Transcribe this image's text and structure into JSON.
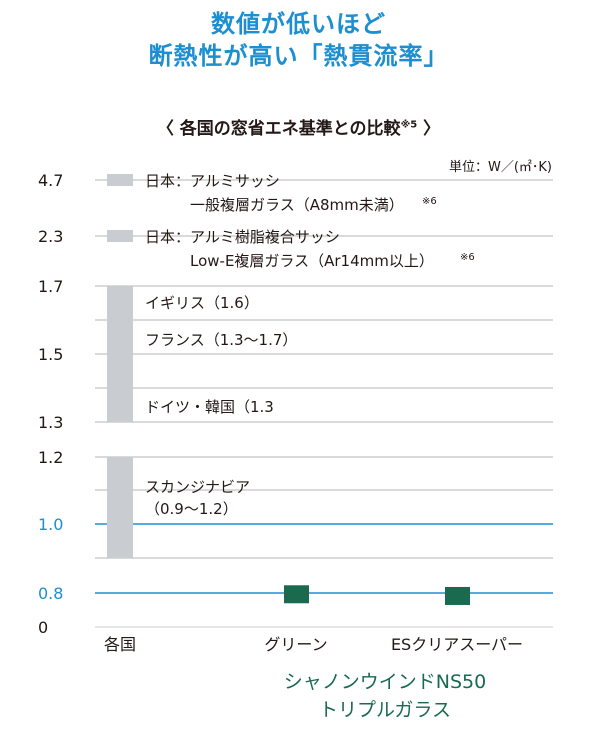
{
  "headline": {
    "line1": "数値が低いほど",
    "line2": "断熱性が高い「熱貫流率」"
  },
  "subtitle": {
    "text": "〈 各国の窓省エネ基準との比較",
    "note": "※5",
    "close": " 〉"
  },
  "brand": {
    "line1": "シャノンウインドNS50",
    "line2": "トリプルガラス"
  },
  "colors": {
    "headline": "#1d8fd0",
    "highlight_line": "#1d8fd0",
    "grid": "#9d9d9d",
    "range_bar": "#c9cdd1",
    "product_bar": "#1a6a4f",
    "brand": "#1a6a4f"
  },
  "chart_data": {
    "type": "bar",
    "unit_label": "単位：W／(㎡･K)",
    "y_ticks": [
      {
        "value": 0,
        "label": "0",
        "highlight": false
      },
      {
        "value": 0.8,
        "label": "0.8",
        "highlight": true
      },
      {
        "value": 0.9,
        "label": "",
        "highlight": false
      },
      {
        "value": 1.0,
        "label": "1.0",
        "highlight": true
      },
      {
        "value": 1.1,
        "label": "",
        "highlight": false
      },
      {
        "value": 1.2,
        "label": "1.2",
        "highlight": false
      },
      {
        "value": 1.3,
        "label": "1.3",
        "highlight": false
      },
      {
        "value": 1.4,
        "label": "",
        "highlight": false
      },
      {
        "value": 1.5,
        "label": "1.5",
        "highlight": false
      },
      {
        "value": 1.6,
        "label": "",
        "highlight": false
      },
      {
        "value": 1.7,
        "label": "1.7",
        "highlight": false
      },
      {
        "value": 2.3,
        "label": "2.3",
        "highlight": false
      },
      {
        "value": 4.7,
        "label": "4.7",
        "highlight": false
      }
    ],
    "categories": [
      "各国",
      "グリーン",
      "ESクリアスーパー"
    ],
    "country_ranges": [
      {
        "name": "日本",
        "low": 4.7,
        "high": 4.7,
        "label": [
          "日本：アルミサッシ",
          "一般複層ガラス（A8mm未満）"
        ],
        "note": "※6"
      },
      {
        "name": "日本",
        "low": 2.3,
        "high": 2.3,
        "label": [
          "日本：アルミ樹脂複合サッシ",
          "Low-E複層ガラス（Ar14mm以上）"
        ],
        "note": "※6"
      },
      {
        "name": "イギリス",
        "low": 1.6,
        "high": 1.6,
        "label": [
          "イギリス（1.6）"
        ]
      },
      {
        "name": "フランス",
        "low": 1.3,
        "high": 1.7,
        "label": [
          "フランス（1.3〜1.7）"
        ]
      },
      {
        "name": "ドイツ・韓国",
        "low": 1.3,
        "high": 1.3,
        "label": [
          "ドイツ・韓国（1.3"
        ]
      },
      {
        "name": "スカンジナビア",
        "low": 0.9,
        "high": 1.2,
        "label": [
          "スカンジナビア",
          "（0.9〜1.2）"
        ]
      }
    ],
    "products": [
      {
        "name": "グリーン",
        "value": 0.77
      },
      {
        "name": "ESクリアスーパー",
        "value": 0.73
      }
    ]
  }
}
